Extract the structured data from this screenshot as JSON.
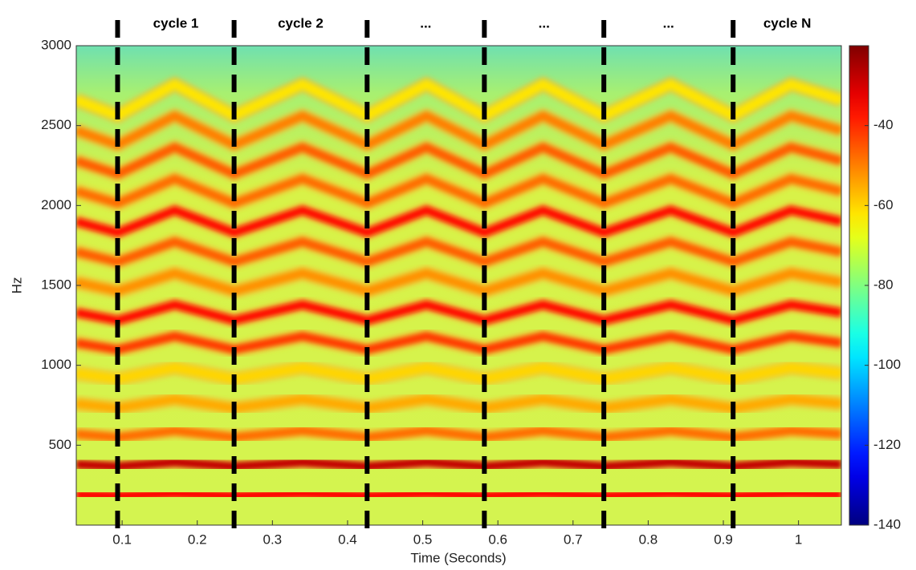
{
  "chart_data": {
    "type": "spectrogram",
    "xlabel": "Time (Seconds)",
    "ylabel": "Hz",
    "xlim": [
      0.039,
      1.057
    ],
    "ylim": [
      0,
      3000
    ],
    "xticks": [
      0.1,
      0.2,
      0.3,
      0.4,
      0.5,
      0.6,
      0.7,
      0.8,
      0.9,
      1
    ],
    "yticks": [
      500,
      1000,
      1500,
      2000,
      2500,
      3000
    ],
    "colorbar": {
      "clim": [
        -140,
        -20
      ],
      "ticks": [
        -40,
        -60,
        -80,
        -100,
        -120,
        -140
      ],
      "colormap": "jet"
    },
    "x": [
      0.039,
      0.094,
      0.17,
      0.249,
      0.34,
      0.426,
      0.505,
      0.582,
      0.66,
      0.741,
      0.83,
      0.913,
      0.99,
      1.057
    ],
    "series": [
      {
        "level": -35,
        "values": [
          190,
          183,
          197,
          183,
          197,
          183,
          197,
          183,
          197,
          183,
          197,
          183,
          197,
          190
        ]
      },
      {
        "level": -28,
        "values": [
          380,
          366,
          394,
          366,
          394,
          366,
          394,
          366,
          394,
          366,
          394,
          366,
          394,
          380
        ]
      },
      {
        "level": -48,
        "values": [
          570,
          549,
          591,
          549,
          591,
          549,
          591,
          549,
          591,
          549,
          591,
          549,
          591,
          570
        ]
      },
      {
        "level": -55,
        "values": [
          760,
          732,
          788,
          732,
          788,
          732,
          788,
          732,
          788,
          732,
          788,
          732,
          788,
          760
        ]
      },
      {
        "level": -60,
        "values": [
          950,
          915,
          985,
          915,
          985,
          915,
          985,
          915,
          985,
          915,
          985,
          915,
          985,
          950
        ]
      },
      {
        "level": -42,
        "values": [
          1140,
          1098,
          1182,
          1098,
          1182,
          1098,
          1182,
          1098,
          1182,
          1098,
          1182,
          1098,
          1182,
          1140
        ]
      },
      {
        "level": -36,
        "values": [
          1330,
          1281,
          1379,
          1281,
          1379,
          1281,
          1379,
          1281,
          1379,
          1281,
          1379,
          1281,
          1379,
          1330
        ]
      },
      {
        "level": -52,
        "values": [
          1520,
          1464,
          1576,
          1464,
          1576,
          1464,
          1576,
          1464,
          1576,
          1464,
          1576,
          1464,
          1576,
          1520
        ]
      },
      {
        "level": -46,
        "values": [
          1710,
          1647,
          1773,
          1647,
          1773,
          1647,
          1773,
          1647,
          1773,
          1647,
          1773,
          1647,
          1773,
          1710
        ]
      },
      {
        "level": -36,
        "values": [
          1900,
          1830,
          1970,
          1830,
          1970,
          1830,
          1970,
          1830,
          1970,
          1830,
          1970,
          1830,
          1970,
          1900
        ]
      },
      {
        "level": -48,
        "values": [
          2090,
          2013,
          2167,
          2013,
          2167,
          2013,
          2167,
          2013,
          2167,
          2013,
          2167,
          2013,
          2167,
          2090
        ]
      },
      {
        "level": -46,
        "values": [
          2280,
          2196,
          2364,
          2196,
          2364,
          2196,
          2364,
          2196,
          2364,
          2196,
          2364,
          2196,
          2364,
          2280
        ]
      },
      {
        "level": -50,
        "values": [
          2470,
          2379,
          2561,
          2379,
          2561,
          2379,
          2561,
          2379,
          2561,
          2379,
          2561,
          2379,
          2561,
          2470
        ]
      },
      {
        "level": -62,
        "values": [
          2660,
          2562,
          2758,
          2562,
          2758,
          2562,
          2758,
          2562,
          2758,
          2562,
          2758,
          2562,
          2758,
          2660
        ]
      }
    ],
    "cycle_markers": [
      0.094,
      0.249,
      0.426,
      0.582,
      0.741,
      0.913
    ],
    "cycle_labels": [
      "cycle 1",
      "cycle 2",
      "...",
      "...",
      "...",
      "cycle N"
    ]
  }
}
